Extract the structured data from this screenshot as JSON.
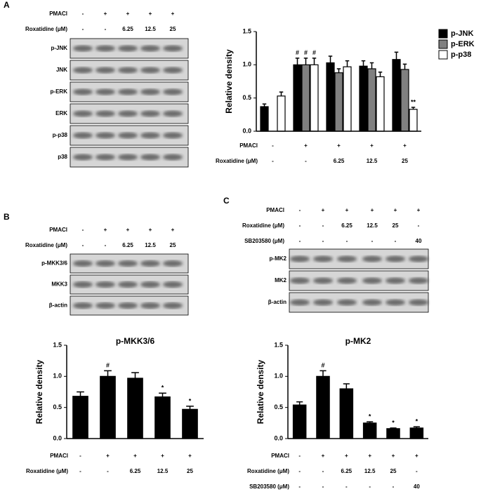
{
  "panels": [
    {
      "label": "A",
      "conditions": [
        {
          "label": "PMACl",
          "values": [
            "-",
            "+",
            "+",
            "+",
            "+"
          ]
        },
        {
          "label": "Roxatidine (μM)",
          "values": [
            "-",
            "-",
            "6.25",
            "12.5",
            "25"
          ]
        }
      ],
      "blot_rows": [
        "p-JNK",
        "JNK",
        "p-ERK",
        "ERK",
        "p-p38",
        "p38"
      ]
    },
    {
      "label": "B",
      "conditions": [
        {
          "label": "PMACl",
          "values": [
            "-",
            "+",
            "+",
            "+",
            "+"
          ]
        },
        {
          "label": "Roxatidine (μM)",
          "values": [
            "-",
            "-",
            "6.25",
            "12.5",
            "25"
          ]
        }
      ],
      "blot_rows": [
        "p-MKK3/6",
        "MKK3",
        "β-actin"
      ]
    },
    {
      "label": "C",
      "conditions": [
        {
          "label": "PMACl",
          "values": [
            "-",
            "+",
            "+",
            "+",
            "+",
            "+"
          ]
        },
        {
          "label": "Roxatidine (μM)",
          "values": [
            "-",
            "-",
            "6.25",
            "12.5",
            "25",
            "-"
          ]
        },
        {
          "label": "SB203580 (μM)",
          "values": [
            "-",
            "-",
            "-",
            "-",
            "-",
            "40"
          ]
        }
      ],
      "blot_rows": [
        "p-MK2",
        "MK2",
        "β-actin"
      ]
    }
  ],
  "chart_data": [
    {
      "type": "bar",
      "ylabel": "Relative density",
      "ylim": [
        0,
        1.5
      ],
      "yticks": [
        {
          "value": 0,
          "label": "0.0"
        },
        {
          "value": 0.5,
          "label": "0.5"
        },
        {
          "value": 1,
          "label": "1.0"
        },
        {
          "value": 1.5,
          "label": "1.5"
        }
      ],
      "legend": "right",
      "series": [
        {
          "name": "p-JNK",
          "color": "#000000",
          "values": [
            0.37,
            1.0,
            1.03,
            0.98,
            1.08
          ],
          "errors": [
            0.04,
            0.1,
            0.1,
            0.08,
            0.11
          ],
          "annotations": [
            null,
            "#",
            null,
            null,
            null
          ]
        },
        {
          "name": "p-ERK",
          "color": "#808080",
          "values": [
            null,
            1.0,
            0.88,
            0.94,
            0.93
          ],
          "errors": [
            null,
            0.1,
            0.06,
            0.09,
            0.08
          ],
          "annotations": [
            null,
            "#",
            null,
            null,
            null
          ]
        },
        {
          "name": "p-p38",
          "color": "#ffffff",
          "values": [
            0.53,
            1.0,
            0.97,
            0.82,
            0.33
          ],
          "errors": [
            0.06,
            0.1,
            0.09,
            0.07,
            0.03
          ],
          "annotations": [
            null,
            "#",
            null,
            null,
            "**"
          ]
        }
      ],
      "conditions": [
        {
          "label": "PMACl",
          "values": [
            "-",
            "+",
            "+",
            "+",
            "+"
          ]
        },
        {
          "label": "Roxatidine (μM)",
          "values": [
            "-",
            "-",
            "6.25",
            "12.5",
            "25"
          ]
        }
      ]
    },
    {
      "type": "bar",
      "title": "p-MKK3/6",
      "ylabel": "Relative density",
      "ylim": [
        0,
        1.5
      ],
      "yticks": [
        {
          "value": 0,
          "label": "0.0"
        },
        {
          "value": 0.5,
          "label": "0.5"
        },
        {
          "value": 1,
          "label": "1.0"
        },
        {
          "value": 1.5,
          "label": "1.5"
        }
      ],
      "series": [
        {
          "color": "#000000",
          "values": [
            0.68,
            1.0,
            0.97,
            0.67,
            0.47
          ],
          "errors": [
            0.07,
            0.09,
            0.09,
            0.06,
            0.05
          ],
          "annotations": [
            null,
            "#",
            null,
            "*",
            "*"
          ]
        }
      ],
      "conditions": [
        {
          "label": "PMACl",
          "values": [
            "-",
            "+",
            "+",
            "+",
            "+"
          ]
        },
        {
          "label": "Roxatidine (μM)",
          "values": [
            "-",
            "-",
            "6.25",
            "12.5",
            "25"
          ]
        }
      ]
    },
    {
      "type": "bar",
      "title": "p-MK2",
      "ylabel": "Relative density",
      "ylim": [
        0,
        1.5
      ],
      "yticks": [
        {
          "value": 0,
          "label": "0.0"
        },
        {
          "value": 0.5,
          "label": "0.5"
        },
        {
          "value": 1,
          "label": "1.0"
        },
        {
          "value": 1.5,
          "label": "1.5"
        }
      ],
      "series": [
        {
          "color": "#000000",
          "values": [
            0.54,
            1.0,
            0.8,
            0.25,
            0.16,
            0.17
          ],
          "errors": [
            0.05,
            0.09,
            0.08,
            0.02,
            0.01,
            0.02
          ],
          "annotations": [
            null,
            "#",
            null,
            "*",
            "*",
            "*"
          ]
        }
      ],
      "conditions": [
        {
          "label": "PMACl",
          "values": [
            "-",
            "+",
            "+",
            "+",
            "+",
            "+"
          ]
        },
        {
          "label": "Roxatidine (μM)",
          "values": [
            "-",
            "-",
            "6.25",
            "12.5",
            "25",
            "-"
          ]
        },
        {
          "label": "SB203580 (μM)",
          "values": [
            "-",
            "-",
            "-",
            "-",
            "-",
            "40"
          ]
        }
      ]
    }
  ]
}
